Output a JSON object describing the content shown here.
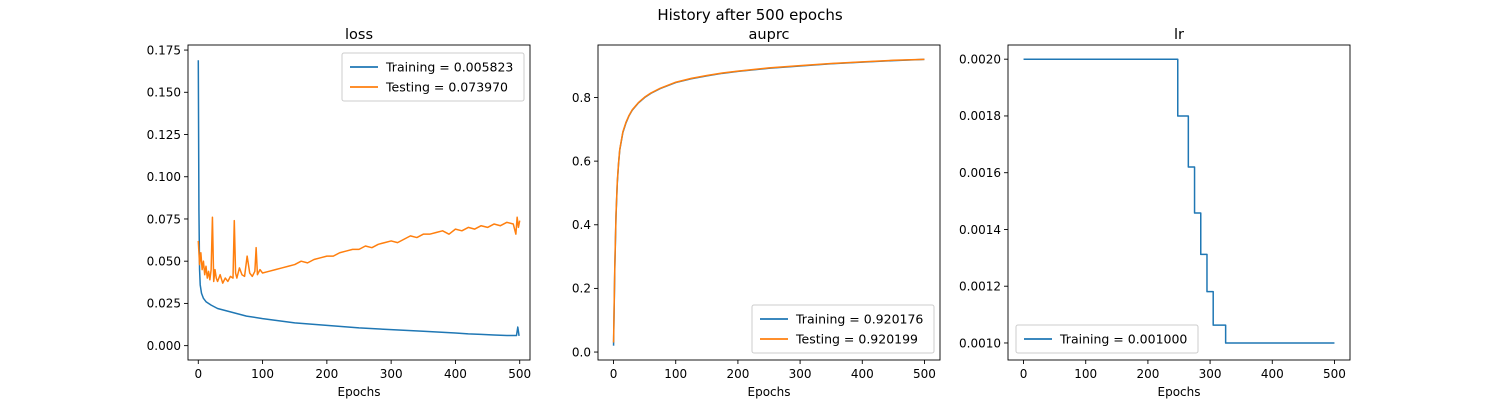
{
  "figure": {
    "suptitle": "History after 500 epochs"
  },
  "colors": {
    "training": "#1f77b4",
    "testing": "#ff7f0e"
  },
  "chart_data": [
    {
      "type": "line",
      "title": "loss",
      "xlabel": "Epochs",
      "ylabel": "",
      "xlim": [
        -16,
        516
      ],
      "ylim": [
        -0.0085,
        0.178
      ],
      "xticks": [
        0,
        100,
        200,
        300,
        400,
        500
      ],
      "yticks": [
        0.0,
        0.025,
        0.05,
        0.075,
        0.1,
        0.125,
        0.15,
        0.175
      ],
      "ytick_labels": [
        "0.000",
        "0.025",
        "0.050",
        "0.075",
        "0.100",
        "0.125",
        "0.150",
        "0.175"
      ],
      "legend_loc": "upper right",
      "series": [
        {
          "name": "Training = 0.005823",
          "color": "#1f77b4",
          "x": [
            0,
            1,
            2,
            3,
            5,
            8,
            12,
            20,
            30,
            50,
            75,
            100,
            150,
            200,
            250,
            300,
            350,
            400,
            420,
            440,
            460,
            480,
            495,
            497,
            499
          ],
          "y": [
            0.169,
            0.08,
            0.045,
            0.036,
            0.031,
            0.028,
            0.026,
            0.024,
            0.022,
            0.02,
            0.0175,
            0.016,
            0.0135,
            0.012,
            0.0105,
            0.0095,
            0.0085,
            0.0075,
            0.007,
            0.0067,
            0.0063,
            0.006,
            0.006,
            0.011,
            0.0058
          ]
        },
        {
          "name": "Testing = 0.073970",
          "color": "#ff7f0e",
          "x": [
            0,
            2,
            4,
            6,
            8,
            10,
            12,
            14,
            16,
            18,
            20,
            22,
            24,
            26,
            28,
            30,
            34,
            38,
            42,
            46,
            50,
            54,
            56,
            58,
            60,
            64,
            68,
            72,
            76,
            80,
            84,
            88,
            90,
            92,
            96,
            100,
            110,
            120,
            130,
            140,
            150,
            160,
            170,
            180,
            190,
            200,
            210,
            220,
            230,
            240,
            250,
            260,
            270,
            280,
            290,
            300,
            310,
            320,
            330,
            340,
            350,
            360,
            370,
            380,
            390,
            400,
            410,
            420,
            430,
            440,
            450,
            460,
            470,
            480,
            490,
            494,
            496,
            498,
            500
          ],
          "y": [
            0.062,
            0.048,
            0.055,
            0.045,
            0.05,
            0.042,
            0.047,
            0.04,
            0.044,
            0.039,
            0.045,
            0.076,
            0.038,
            0.045,
            0.04,
            0.038,
            0.042,
            0.037,
            0.04,
            0.038,
            0.041,
            0.04,
            0.074,
            0.043,
            0.04,
            0.046,
            0.042,
            0.041,
            0.053,
            0.043,
            0.041,
            0.044,
            0.058,
            0.042,
            0.045,
            0.043,
            0.044,
            0.045,
            0.046,
            0.047,
            0.048,
            0.05,
            0.049,
            0.051,
            0.052,
            0.053,
            0.053,
            0.055,
            0.056,
            0.057,
            0.057,
            0.059,
            0.058,
            0.06,
            0.061,
            0.062,
            0.061,
            0.063,
            0.065,
            0.064,
            0.066,
            0.066,
            0.067,
            0.068,
            0.066,
            0.069,
            0.068,
            0.07,
            0.069,
            0.071,
            0.07,
            0.072,
            0.071,
            0.073,
            0.072,
            0.066,
            0.076,
            0.07,
            0.074
          ]
        }
      ]
    },
    {
      "type": "line",
      "title": "auprc",
      "xlabel": "Epochs",
      "ylabel": "",
      "xlim": [
        -25,
        525
      ],
      "ylim": [
        -0.025,
        0.965
      ],
      "xticks": [
        0,
        100,
        200,
        300,
        400,
        500
      ],
      "yticks": [
        0.0,
        0.2,
        0.4,
        0.6,
        0.8
      ],
      "ytick_labels": [
        "0.0",
        "0.2",
        "0.4",
        "0.6",
        "0.8"
      ],
      "legend_loc": "lower right",
      "series": [
        {
          "name": "Training = 0.920176",
          "color": "#1f77b4",
          "x": [
            0,
            2,
            4,
            6,
            8,
            10,
            15,
            20,
            25,
            30,
            40,
            50,
            60,
            75,
            100,
            125,
            150,
            175,
            200,
            250,
            300,
            350,
            400,
            450,
            500
          ],
          "y": [
            0.02,
            0.26,
            0.43,
            0.53,
            0.59,
            0.635,
            0.69,
            0.72,
            0.743,
            0.76,
            0.783,
            0.8,
            0.813,
            0.828,
            0.847,
            0.859,
            0.868,
            0.876,
            0.882,
            0.892,
            0.899,
            0.906,
            0.911,
            0.916,
            0.92
          ]
        },
        {
          "name": "Testing = 0.920199",
          "color": "#ff7f0e",
          "x": [
            0,
            2,
            4,
            6,
            8,
            10,
            15,
            20,
            25,
            30,
            40,
            50,
            60,
            75,
            100,
            125,
            150,
            175,
            200,
            250,
            300,
            350,
            400,
            450,
            500
          ],
          "y": [
            0.03,
            0.27,
            0.435,
            0.535,
            0.593,
            0.637,
            0.692,
            0.722,
            0.744,
            0.761,
            0.784,
            0.801,
            0.814,
            0.829,
            0.848,
            0.86,
            0.869,
            0.877,
            0.883,
            0.893,
            0.9,
            0.907,
            0.912,
            0.917,
            0.92
          ]
        }
      ]
    },
    {
      "type": "line",
      "title": "lr",
      "xlabel": "Epochs",
      "ylabel": "",
      "xlim": [
        -25,
        525
      ],
      "ylim": [
        0.00094,
        0.00205
      ],
      "xticks": [
        0,
        100,
        200,
        300,
        400,
        500
      ],
      "yticks": [
        0.001,
        0.0012,
        0.0014,
        0.0016,
        0.0018,
        0.002
      ],
      "ytick_labels": [
        "0.0010",
        "0.0012",
        "0.0014",
        "0.0016",
        "0.0018",
        "0.0020"
      ],
      "legend_loc": "lower left",
      "series": [
        {
          "name": "Training = 0.001000",
          "color": "#1f77b4",
          "x": [
            0,
            248,
            248,
            265,
            265,
            275,
            275,
            285,
            285,
            295,
            295,
            305,
            305,
            315,
            315,
            325,
            325,
            500
          ],
          "y": [
            0.002,
            0.002,
            0.0018,
            0.0018,
            0.00162,
            0.00162,
            0.001458,
            0.001458,
            0.001312,
            0.001312,
            0.001181,
            0.001181,
            0.001063,
            0.001063,
            0.001063,
            0.001063,
            0.001,
            0.001
          ]
        }
      ]
    }
  ]
}
